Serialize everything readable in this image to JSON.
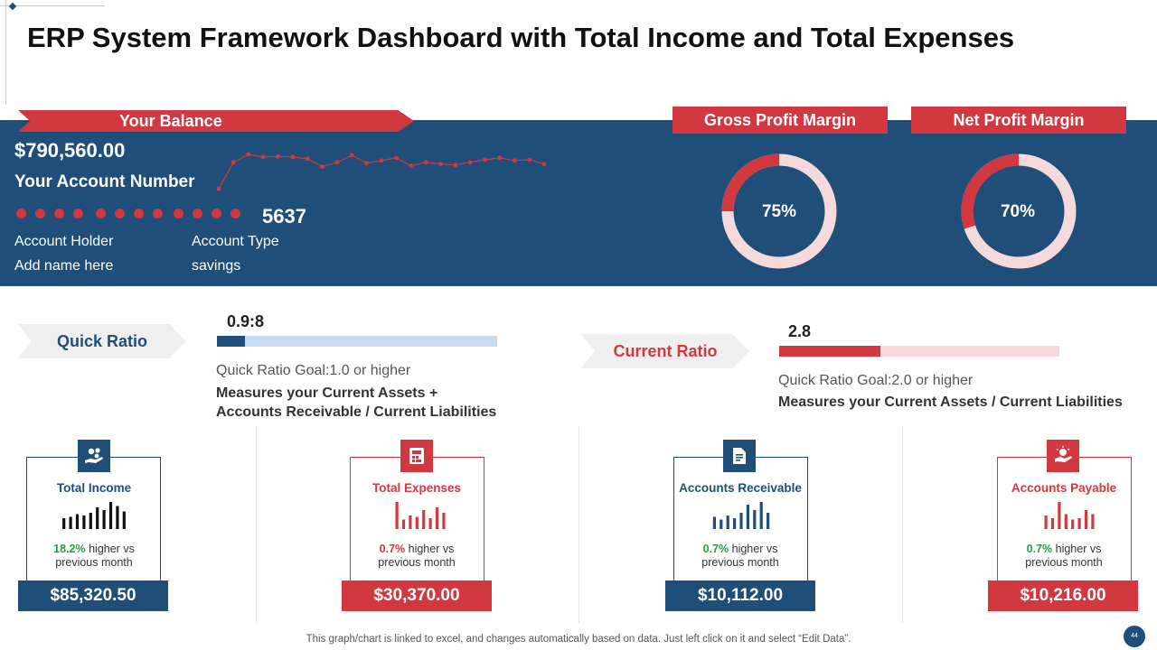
{
  "title": "ERP System Framework Dashboard with Total Income and Total Expenses",
  "colors": {
    "navy": "#1f4e79",
    "red": "#d1383f",
    "green": "#22a04b",
    "light_blue": "#c5dcf0",
    "light_red": "#f6d9db"
  },
  "balance": {
    "ribbon_label": "Your Balance",
    "amount": "$790,560.00",
    "account_number_label": "Your Account Number",
    "account_number_last": "5637",
    "holder_label": "Account Holder",
    "holder_value": "Add name here",
    "type_label": "Account Type",
    "type_value": "savings",
    "sparkline": [
      0,
      60,
      78,
      72,
      73,
      72,
      68,
      50,
      60,
      76,
      58,
      64,
      70,
      52,
      60,
      56,
      54,
      60,
      66,
      70,
      64,
      66,
      56
    ]
  },
  "margins": [
    {
      "label": "Gross Profit Margin",
      "percent_label": "75%",
      "value": 75
    },
    {
      "label": "Net Profit Margin",
      "percent_label": "70%",
      "value": 70
    }
  ],
  "quick_ratio": {
    "label": "Quick Ratio",
    "value_label": "0.9:8",
    "fill_fraction": 0.1,
    "goal": "Quick Ratio Goal:1.0  or higher",
    "desc_line1": "Measures your Current Assets +",
    "desc_line2": "Accounts Receivable / Current Liabilities"
  },
  "current_ratio": {
    "label": "Current Ratio",
    "value_label": "2.8",
    "fill_fraction": 0.36,
    "goal": "Quick Ratio Goal:2.0  or higher",
    "desc_line1": "Measures your Current Assets / Current Liabilities"
  },
  "cards": [
    {
      "title": "Total Income",
      "change_pct": "18.2%",
      "change_text": " higher vs",
      "change_text2": "previous  month",
      "value": "$85,320.50",
      "icon": "money-hand-icon",
      "bars": [
        0.4,
        0.45,
        0.55,
        0.5,
        0.6,
        0.8,
        0.7,
        1.0,
        0.85,
        0.65
      ]
    },
    {
      "title": "Total Expenses",
      "change_pct": "0.7%",
      "change_text": " higher vs",
      "change_text2": "previous  month",
      "value": "$30,370.00",
      "icon": "calculator-icon",
      "bars": [
        1.0,
        0.35,
        0.5,
        0.45,
        0.7,
        0.4,
        0.8,
        0.6
      ]
    },
    {
      "title": "Accounts  Receivable",
      "change_pct": "0.7%",
      "change_text": " higher vs",
      "change_text2": "previous  month",
      "value": "$10,112.00",
      "icon": "document-icon",
      "bars": [
        0.45,
        0.35,
        0.5,
        0.4,
        0.6,
        0.9,
        0.7,
        1.0,
        0.6
      ]
    },
    {
      "title": "Accounts  Payable",
      "change_pct": "0.7%",
      "change_text": " higher vs",
      "change_text2": "previous  month",
      "value": "$10,216.00",
      "icon": "hand-coin-icon",
      "bars": [
        0.5,
        0.4,
        1.0,
        0.55,
        0.35,
        0.4,
        0.7,
        0.55
      ]
    }
  ],
  "footer": "This graph/chart is linked to excel,  and changes automatically based on data. Just left click on it and select “Edit Data”.",
  "page_number": "44"
}
